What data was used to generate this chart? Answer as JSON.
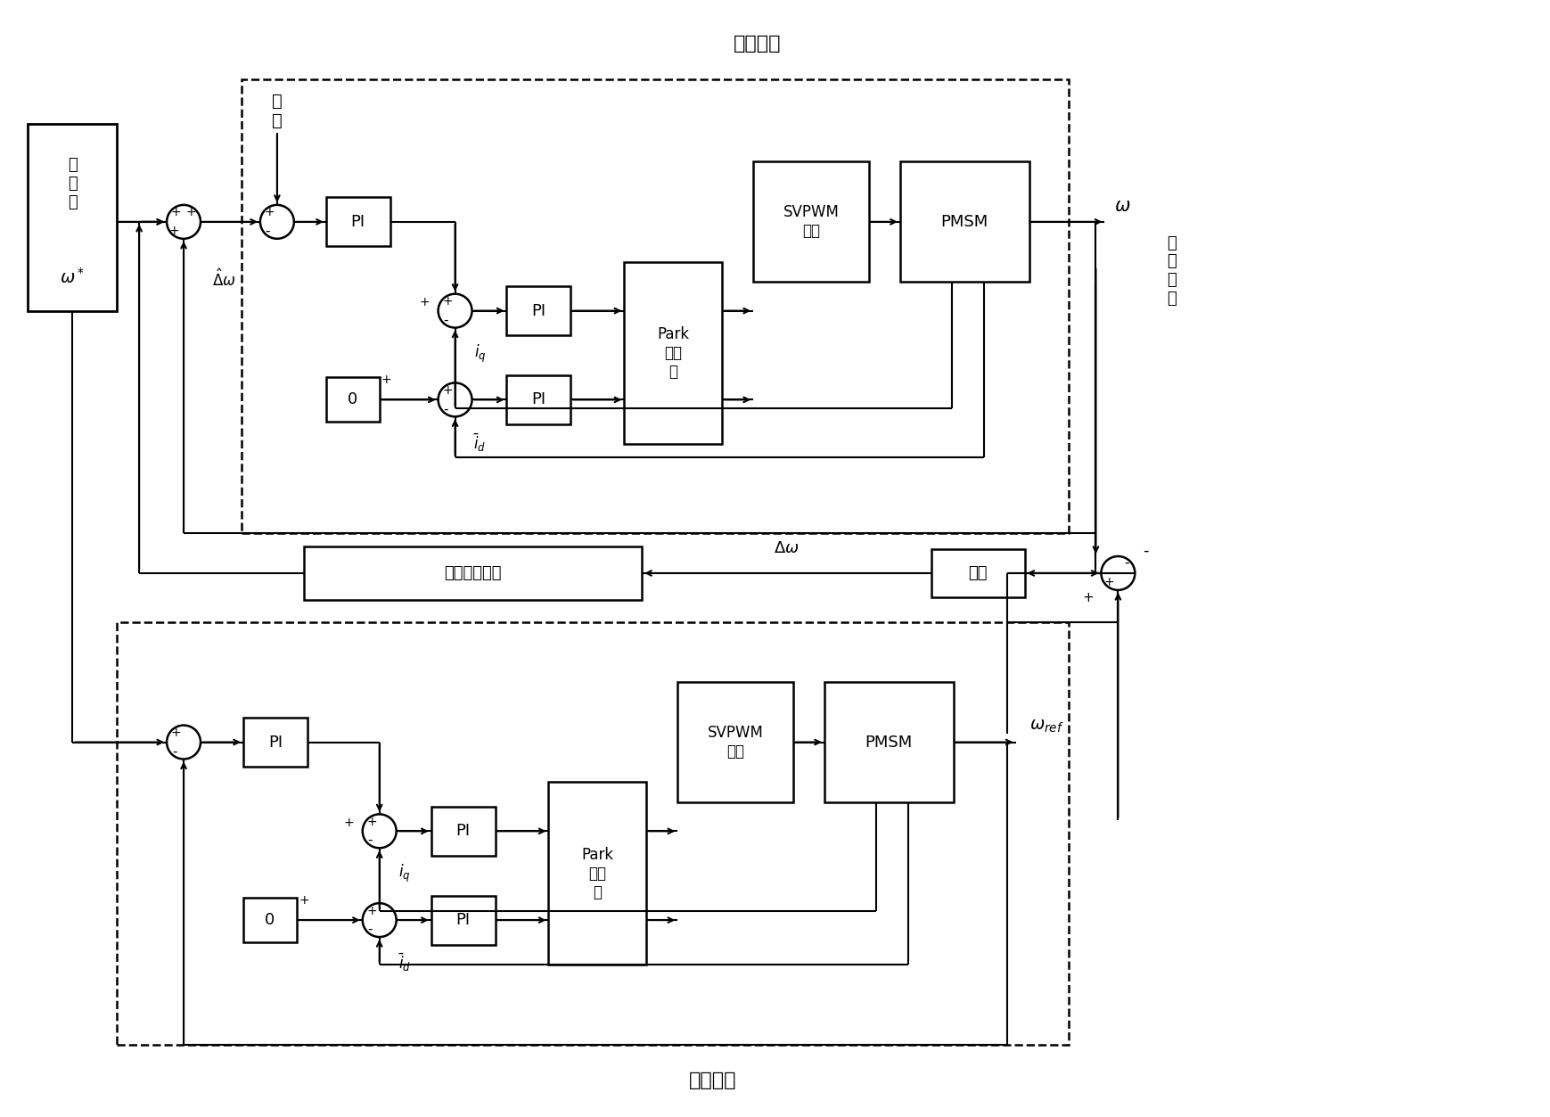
{
  "bg_color": "#ffffff",
  "line_color": "#000000",
  "figw": 17.39,
  "figh": 12.53,
  "title_top": "实际情况",
  "title_bottom": "理想情况",
  "label_given_zh": "给\n定\n値",
  "label_omega_star": "$\\omega^*$",
  "label_disturbance": "干\n扰",
  "label_zero": "0",
  "label_PI": "PI",
  "label_park": "Park\n逆变\n换",
  "label_svpwm": "SVPWM\n逆变",
  "label_pmsm": "PMSM",
  "label_omega_out": "$\\omega$",
  "label_actual_output": "实\n际\n输\n出",
  "label_grey_comp": "优化灰色补偶",
  "label_delta_omega_arrow": "$\\Delta\\omega$",
  "label_error": "误差",
  "label_omega_ref": "$\\omega_{ref}$",
  "label_iq": "$i_q$",
  "label_id": "$\\bar{i}_d$",
  "label_delta_omega_hat": "$\\hat{\\Delta}\\omega$",
  "sj_r": 0.19
}
